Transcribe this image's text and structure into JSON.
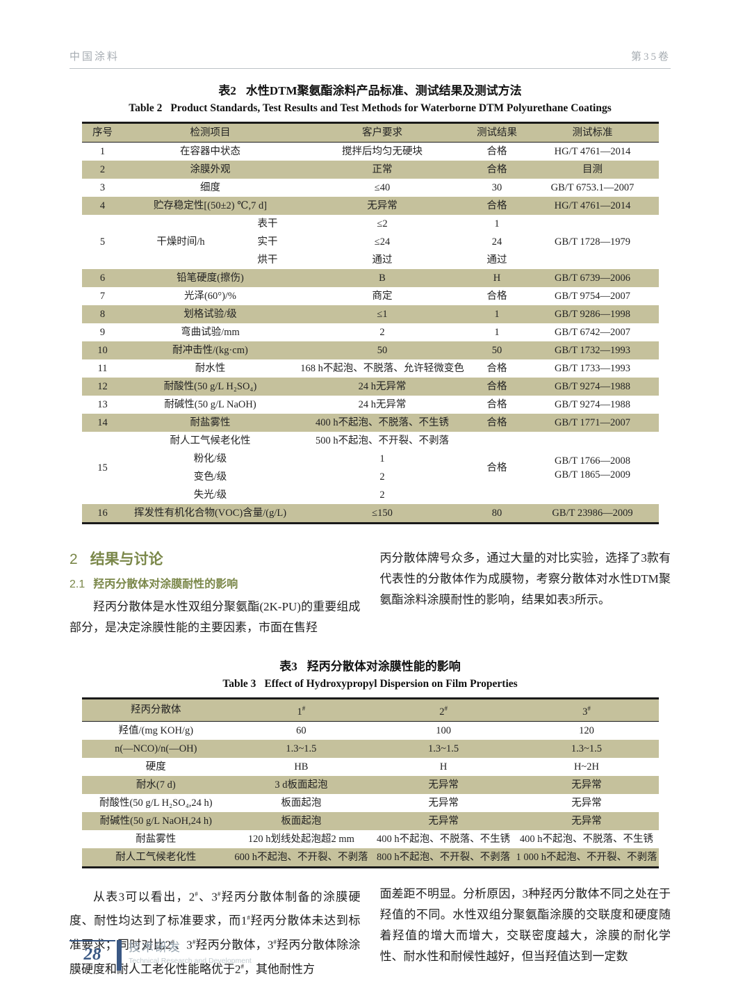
{
  "page_header": {
    "journal": "中国涂料",
    "volume": "第35卷"
  },
  "table2": {
    "title_zh_prefix": "表2",
    "title_zh": "水性DTM聚氨酯涂料产品标准、测试结果及测试方法",
    "title_en_prefix": "Table 2",
    "title_en": "Product Standards, Test Results and Test Methods for Waterborne DTM Polyurethane Coatings",
    "columns": [
      "序号",
      "检测项目",
      "客户要求",
      "测试结果",
      "测试标准"
    ],
    "rows": [
      {
        "seq": "1",
        "item": "在容器中状态",
        "req": "搅拌后均匀无硬块",
        "res": "合格",
        "std": "HG/T 4761—2014"
      },
      {
        "seq": "2",
        "item": "涂膜外观",
        "req": "正常",
        "res": "合格",
        "std": "目测"
      },
      {
        "seq": "3",
        "item": "细度",
        "req": "≤40",
        "res": "30",
        "std": "GB/T 6753.1—2007"
      },
      {
        "seq": "4",
        "item": "贮存稳定性[(50±2) ℃,7 d]",
        "req": "无异常",
        "res": "合格",
        "std": "HG/T 4761—2014"
      },
      {
        "seq": "5",
        "item": "干燥时间/h",
        "std": "GB/T 1728—1979",
        "subrows": [
          {
            "sub": "表干",
            "req": "≤2",
            "res": "1"
          },
          {
            "sub": "实干",
            "req": "≤24",
            "res": "24"
          },
          {
            "sub": "烘干",
            "req": "通过",
            "res": "通过"
          }
        ]
      },
      {
        "seq": "6",
        "item": "铅笔硬度(擦伤)",
        "req": "B",
        "res": "H",
        "std": "GB/T 6739—2006"
      },
      {
        "seq": "7",
        "item": "光泽(60°)/%",
        "req": "商定",
        "res": "合格",
        "std": "GB/T 9754—2007"
      },
      {
        "seq": "8",
        "item": "划格试验/级",
        "req": "≤1",
        "res": "1",
        "std": "GB/T 9286—1998"
      },
      {
        "seq": "9",
        "item": "弯曲试验/mm",
        "req": "2",
        "res": "1",
        "std": "GB/T 6742—2007"
      },
      {
        "seq": "10",
        "item": "耐冲击性/(kg·cm)",
        "req": "50",
        "res": "50",
        "std": "GB/T 1732—1993"
      },
      {
        "seq": "11",
        "item": "耐水性",
        "req": "168 h不起泡、不脱落、允许轻微变色",
        "res": "合格",
        "std": "GB/T 1733—1993"
      },
      {
        "seq": "12",
        "item": "耐酸性(50 g/L H₂SO₄)",
        "req": "24 h无异常",
        "res": "合格",
        "std": "GB/T 9274—1988"
      },
      {
        "seq": "13",
        "item": "耐碱性(50 g/L NaOH)",
        "req": "24 h无异常",
        "res": "合格",
        "std": "GB/T 9274—1988"
      },
      {
        "seq": "14",
        "item": "耐盐雾性",
        "req": "400 h不起泡、不脱落、不生锈",
        "res": "合格",
        "std": "GB/T 1771—2007"
      },
      {
        "seq": "15",
        "res": "合格",
        "std": [
          "GB/T 1766—2008",
          "GB/T 1865—2009"
        ],
        "group": {
          "head_item": "耐人工气候老化性",
          "head_req": "500 h不起泡、不开裂、不剥落",
          "subs": [
            {
              "item": "粉化/级",
              "req": "1"
            },
            {
              "item": "变色/级",
              "req": "2"
            },
            {
              "item": "失光/级",
              "req": "2"
            }
          ]
        }
      },
      {
        "seq": "16",
        "item": "挥发性有机化合物(VOC)含量/(g/L)",
        "req": "≤150",
        "res": "80",
        "std": "GB/T 23986—2009"
      }
    ]
  },
  "section": {
    "h2_num": "2",
    "h2_text": "结果与讨论",
    "h21_num": "2.1",
    "h21_text": "羟丙分散体对涂膜耐性的影响",
    "para_left": "羟丙分散体是水性双组分聚氨酯(2K-PU)的重要组成部分，是决定涂膜性能的主要因素，市面在售羟",
    "para_right": "丙分散体牌号众多，通过大量的对比实验，选择了3款有代表性的分散体作为成膜物，考察分散体对水性DTM聚氨酯涂料涂膜耐性的影响，结果如表3所示。"
  },
  "table3": {
    "title_zh_prefix": "表3",
    "title_zh": "羟丙分散体对涂膜性能的影响",
    "title_en_prefix": "Table 3",
    "title_en": "Effect of Hydroxypropyl Dispersion on Film Properties",
    "columns": [
      "羟丙分散体",
      "1#",
      "2#",
      "3#"
    ],
    "rows": [
      [
        "羟值/(mg KOH/g)",
        "60",
        "100",
        "120"
      ],
      [
        "n(—NCO)/n(—OH)",
        "1.3~1.5",
        "1.3~1.5",
        "1.3~1.5"
      ],
      [
        "硬度",
        "HB",
        "H",
        "H~2H"
      ],
      [
        "耐水(7 d)",
        "3 d板面起泡",
        "无异常",
        "无异常"
      ],
      [
        "耐酸性(50 g/L H₂SO₄,24 h)",
        "板面起泡",
        "无异常",
        "无异常"
      ],
      [
        "耐碱性(50 g/L NaOH,24 h)",
        "板面起泡",
        "无异常",
        "无异常"
      ],
      [
        "耐盐雾性",
        "120 h划线处起泡超2 mm",
        "400 h不起泡、不脱落、不生锈",
        "400 h不起泡、不脱落、不生锈"
      ],
      [
        "耐人工气候老化性",
        "600 h不起泡、不开裂、不剥落",
        "800 h不起泡、不开裂、不剥落",
        "1 000 h不起泡、不开裂、不剥落"
      ]
    ]
  },
  "discussion": {
    "para_left": "从表3可以看出，2#、3#羟丙分散体制备的涂膜硬度、耐性均达到了标准要求，而1#羟丙分散体未达到标准要求；同时对比2#、3#羟丙分散体，3#羟丙分散体除涂膜硬度和耐人工老化性能略优于2#，其他耐性方",
    "para_right": "面差距不明显。分析原因，3种羟丙分散体不同之处在于羟值的不同。水性双组分聚氨酯涂膜的交联度和硬度随着羟值的增大而增大，交联密度越大，涂膜的耐化学性、耐水性和耐候性越好，但当羟值达到一定数"
  },
  "footer": {
    "page_number": "28",
    "label_zh": "技术研发",
    "label_en": "Technical Research and Development"
  }
}
